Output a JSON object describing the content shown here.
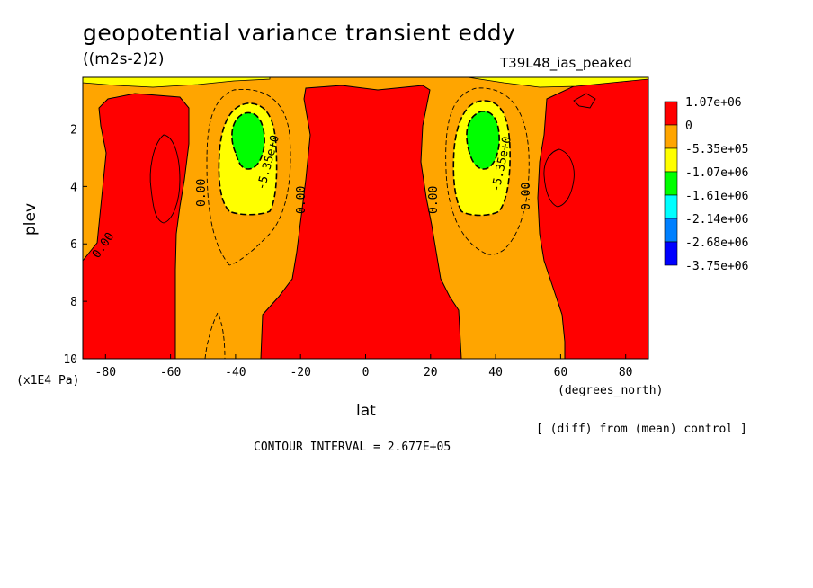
{
  "chart_data": {
    "type": "heatmap",
    "title": "geopotential variance transient eddy",
    "subtitle": "((m2s-2)2)",
    "run_label": "T39L48_ias_peaked",
    "xlabel": "lat",
    "x_units": "(degrees_north)",
    "ylabel": "plev",
    "y_units": "(x1E4 Pa)",
    "xlim": [
      -87,
      87
    ],
    "ylim": [
      10,
      0.2
    ],
    "x_ticks": [
      -80,
      -60,
      -40,
      -20,
      0,
      20,
      40,
      60,
      80
    ],
    "y_ticks": [
      2,
      4,
      6,
      8,
      10
    ],
    "legend_placement": "right",
    "legend_levels": [
      "1.07e+06",
      "0",
      "-5.35e+05",
      "-1.07e+06",
      "-1.61e+06",
      "-2.14e+06",
      "-2.68e+06",
      "-3.75e+06"
    ],
    "legend_colors": [
      "#ff0000",
      "#ffa500",
      "#ffff00",
      "#00ff00",
      "#00ffff",
      "#0080ff",
      "#0000ff"
    ],
    "contour_labels": [
      {
        "text": "0.00",
        "lat": -85,
        "plev": 6.3
      },
      {
        "text": "0.00",
        "lat": -51,
        "plev": 4.2
      },
      {
        "text": "-5.35e+0",
        "lat": -31,
        "plev": 3.5
      },
      {
        "text": "0.00",
        "lat": -20,
        "plev": 4.5
      },
      {
        "text": "0.00",
        "lat": 21,
        "plev": 4.5
      },
      {
        "text": "-5.35e+0",
        "lat": 42,
        "plev": 3.5
      },
      {
        "text": "0.00",
        "lat": 50,
        "plev": 4.3
      }
    ],
    "contour_interval_text": "CONTOUR INTERVAL = 2.677E+05",
    "note": "[ (diff) from (mean) control ]"
  }
}
